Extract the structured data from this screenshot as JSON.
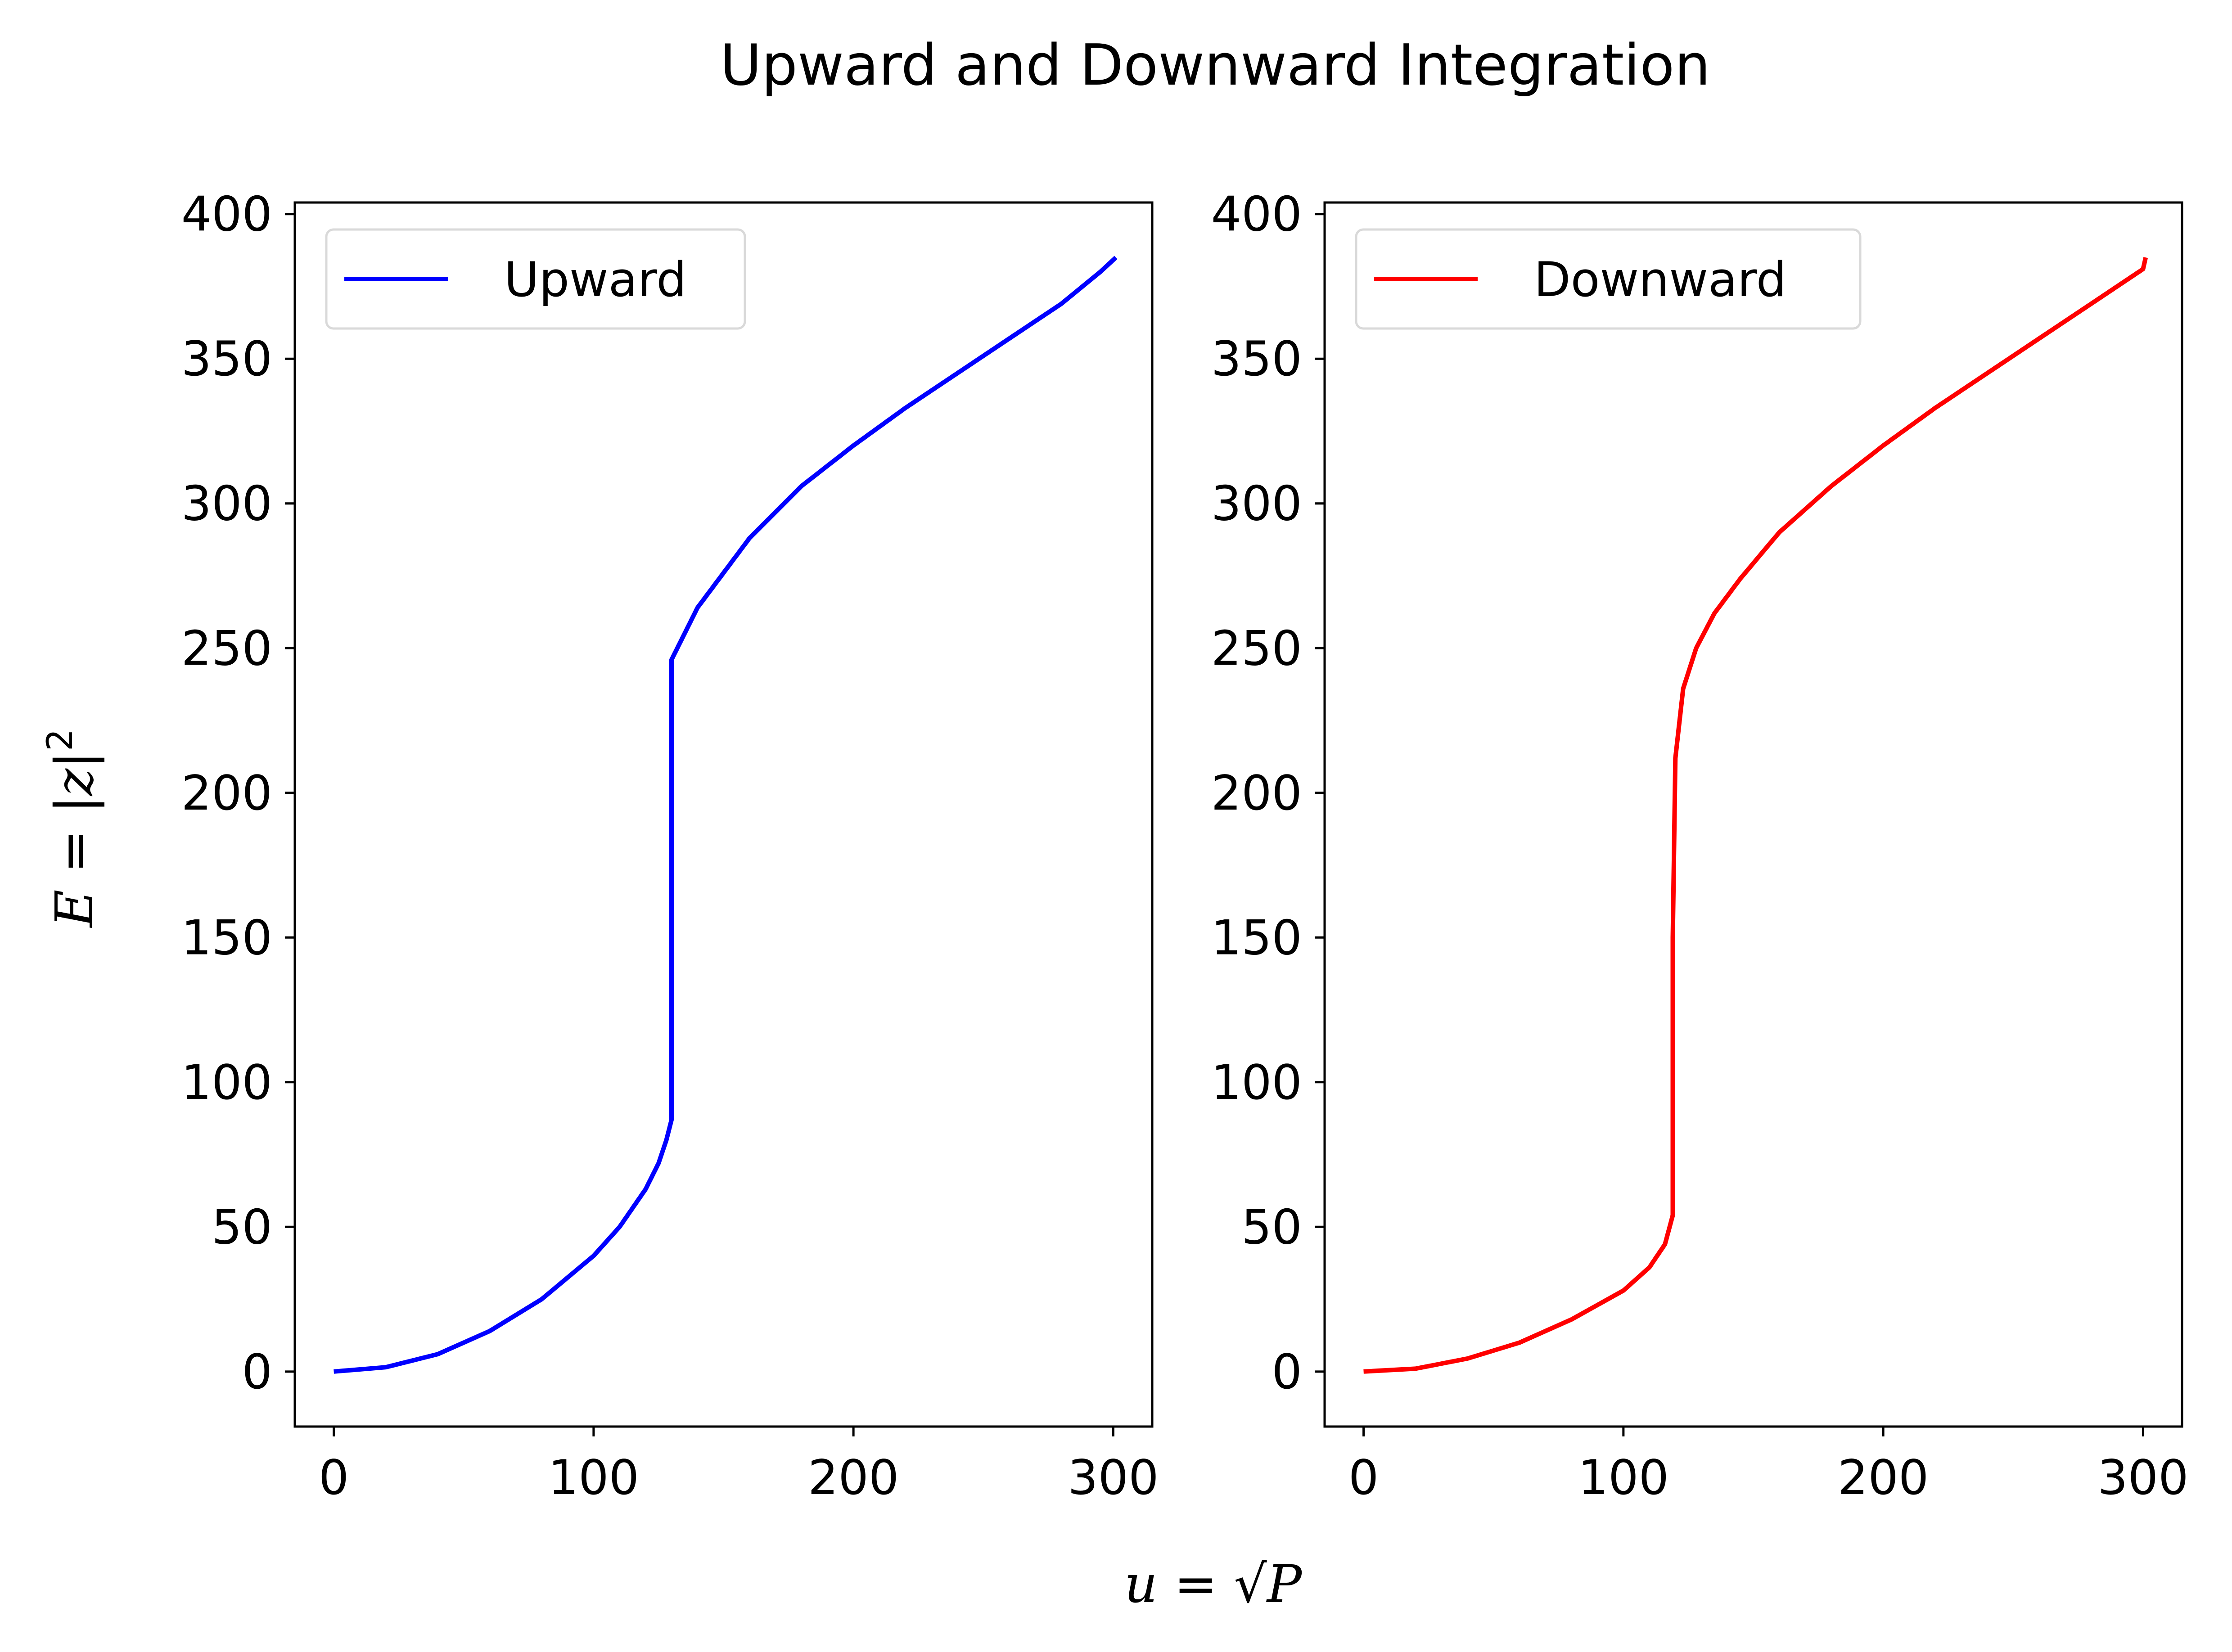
{
  "figure": {
    "title": "Upward and Downward Integration",
    "xlabel": "u = √P",
    "ylabel": "E = |z|²"
  },
  "chart_data": [
    {
      "type": "line",
      "xlim": [
        -15,
        315
      ],
      "ylim": [
        -19,
        404
      ],
      "xticks": [
        "0",
        "100",
        "200",
        "300"
      ],
      "yticks": [
        "0",
        "50",
        "100",
        "150",
        "200",
        "250",
        "300",
        "350",
        "400"
      ],
      "xtick_values": [
        0,
        100,
        200,
        300
      ],
      "ytick_values": [
        0,
        50,
        100,
        150,
        200,
        250,
        300,
        350,
        400
      ],
      "grid": false,
      "legend_position": "upper-left",
      "series": [
        {
          "name": "Upward",
          "color": "#0000ff",
          "x": [
            0,
            20,
            40,
            60,
            80,
            100,
            110,
            120,
            125,
            128,
            130,
            130,
            140,
            160,
            180,
            200,
            220,
            240,
            260,
            280,
            295,
            301
          ],
          "y": [
            0,
            1.5,
            6,
            14,
            25,
            40,
            50,
            63,
            72,
            80,
            87,
            246,
            264,
            288,
            306,
            320,
            333,
            345,
            357,
            369,
            380,
            385
          ]
        }
      ]
    },
    {
      "type": "line",
      "xlim": [
        -15,
        315
      ],
      "ylim": [
        -19,
        404
      ],
      "xticks": [
        "0",
        "100",
        "200",
        "300"
      ],
      "yticks": [
        "0",
        "50",
        "100",
        "150",
        "200",
        "250",
        "300",
        "350",
        "400"
      ],
      "xtick_values": [
        0,
        100,
        200,
        300
      ],
      "ytick_values": [
        0,
        50,
        100,
        150,
        200,
        250,
        300,
        350,
        400
      ],
      "grid": false,
      "legend_position": "upper-left",
      "series": [
        {
          "name": "Downward",
          "color": "#ff0000",
          "x": [
            0,
            20,
            40,
            60,
            80,
            100,
            110,
            116,
            119,
            119,
            120,
            123,
            128,
            135,
            145,
            160,
            180,
            200,
            220,
            240,
            260,
            280,
            300,
            301
          ],
          "y": [
            0,
            1,
            4.5,
            10,
            18,
            28,
            36,
            44,
            54,
            150,
            212,
            236,
            250,
            262,
            274,
            290,
            306,
            320,
            333,
            345,
            357,
            369,
            381,
            385
          ]
        }
      ]
    }
  ]
}
